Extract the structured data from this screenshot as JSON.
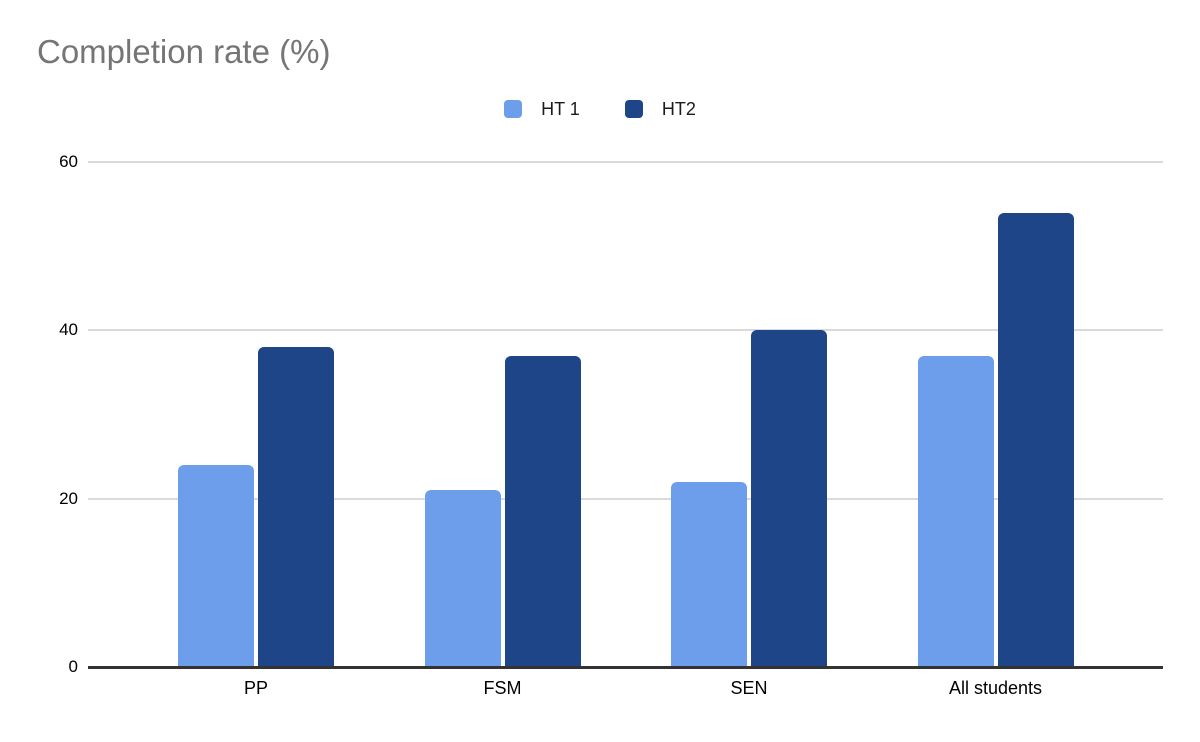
{
  "title": "Completion rate (%)",
  "legend": [
    {
      "label": "HT 1",
      "color": "#6d9eeb"
    },
    {
      "label": "HT2",
      "color": "#1e4587"
    }
  ],
  "colors": {
    "series_light": "#6d9eeb",
    "series_dark": "#1e4587",
    "title_text": "#757575",
    "gridline": "#dadada",
    "axis_line": "#333333",
    "label_text": "#000000"
  },
  "chart_data": {
    "type": "bar",
    "title": "Completion rate (%)",
    "categories": [
      "PP",
      "FSM",
      "SEN",
      "All students"
    ],
    "series": [
      {
        "name": "HT 1",
        "color": "#6d9eeb",
        "values": [
          24,
          21,
          22,
          37
        ]
      },
      {
        "name": "HT2",
        "color": "#1e4587",
        "values": [
          38,
          37,
          40,
          54
        ]
      }
    ],
    "xlabel": "",
    "ylabel": "",
    "ylim": [
      0,
      60
    ],
    "yticks": [
      0,
      20,
      40,
      60
    ],
    "grid": true,
    "legend_position": "top-center"
  }
}
